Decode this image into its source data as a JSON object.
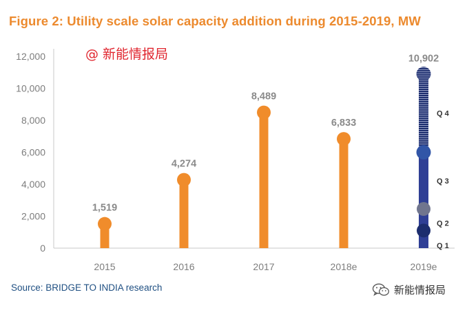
{
  "header": {
    "title": "Figure 2: Utility scale solar capacity addition during 2015-2019, MW"
  },
  "footer": {
    "source": "Source: BRIDGE TO INDIA research"
  },
  "watermarks": {
    "top": "@ 新能情报局",
    "bottom": "新能情报局"
  },
  "colors": {
    "title": "#ec8a2e",
    "bar": "#f08c2b",
    "bar_2019": "#2f3f95",
    "q_dark": "#1c2d6e",
    "q_mid": "#3155a7",
    "q_grey": "#70758e",
    "axis_text": "#7d7d7d",
    "label": "#8a8a8a",
    "source": "#1f4f82"
  },
  "chart_data": {
    "type": "bar",
    "title": "Figure 2: Utility scale solar capacity addition during 2015-2019, MW",
    "xlabel": "",
    "ylabel": "",
    "ylim": [
      0,
      12000
    ],
    "yticks": [
      0,
      2000,
      4000,
      6000,
      8000,
      10000,
      12000
    ],
    "ytick_labels": [
      "0",
      "2,000",
      "4,000",
      "6,000",
      "8,000",
      "10,000",
      "12,000"
    ],
    "categories": [
      "2015",
      "2016",
      "2017",
      "2018e",
      "2019e"
    ],
    "values": [
      1519,
      4274,
      8489,
      6833,
      10902
    ],
    "value_labels": [
      "1,519",
      "4,274",
      "8,489",
      "6,833",
      "10,902"
    ],
    "quarters_2019e": [
      {
        "name": "Q 1",
        "cumulative": 1100
      },
      {
        "name": "Q 2",
        "cumulative": 2450
      },
      {
        "name": "Q 3",
        "cumulative": 6000
      },
      {
        "name": "Q 4",
        "cumulative": 10902
      }
    ],
    "grid": false
  }
}
